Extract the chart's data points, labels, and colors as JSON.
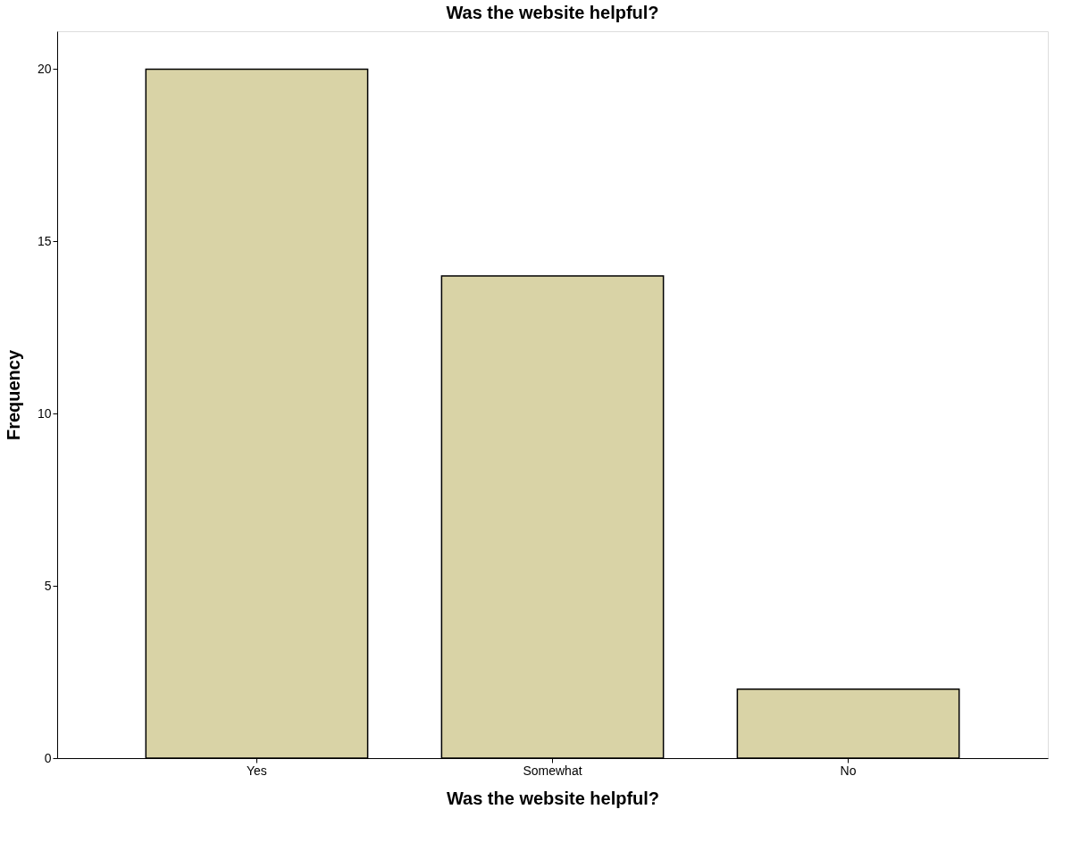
{
  "chart_data": {
    "type": "bar",
    "title": "Was the website helpful?",
    "xlabel": "Was the website helpful?",
    "ylabel": "Frequency",
    "categories": [
      "Yes",
      "Somewhat",
      "No"
    ],
    "values": [
      20,
      14,
      2
    ],
    "color": "#d9d3a6",
    "ylim": [
      0,
      21.1
    ],
    "yticks": [
      0,
      5,
      10,
      15,
      20
    ],
    "grid": false
  }
}
